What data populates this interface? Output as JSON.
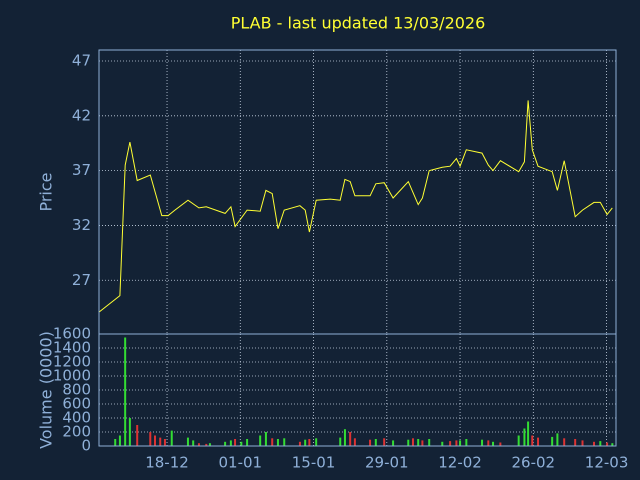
{
  "chart_data": [
    {
      "type": "line",
      "title": "PLAB - last updated 13/03/2026",
      "ylabel": "Price",
      "color": "#ffff33",
      "grid": true,
      "xlim": [
        0,
        98.8
      ],
      "ylim": [
        22.1,
        48
      ],
      "yticks": [
        27,
        32,
        37,
        42,
        47
      ],
      "xticks": [
        13,
        27,
        41,
        55,
        69,
        83,
        97
      ],
      "x": [
        0,
        4.0,
        5.0,
        5.9,
        7.3,
        9.8,
        12.0,
        13.2,
        14.5,
        17.0,
        19.1,
        20.5,
        24.1,
        25.2,
        26.0,
        28.3,
        30.8,
        31.9,
        33.1,
        34.2,
        35.4,
        38.4,
        39.4,
        40.2,
        41.5,
        44.2,
        46.1,
        47.0,
        48.0,
        48.9,
        51.8,
        52.9,
        54.5,
        56.2,
        59.1,
        61.0,
        61.8,
        63.1,
        65.6,
        67.1,
        68.3,
        69.0,
        70.2,
        73.2,
        74.4,
        75.3,
        76.7,
        80.2,
        81.3,
        82.0,
        82.8,
        83.9,
        86.6,
        87.6,
        88.9,
        91.0,
        92.4,
        94.6,
        95.8,
        97.1,
        98.1
      ],
      "values": [
        24.1,
        25.6,
        37.5,
        39.6,
        36.1,
        36.6,
        32.9,
        32.9,
        33.4,
        34.3,
        33.6,
        33.7,
        33.1,
        33.7,
        31.9,
        33.4,
        33.3,
        35.2,
        34.9,
        31.7,
        33.4,
        33.8,
        33.4,
        31.4,
        34.3,
        34.4,
        34.3,
        36.2,
        36.0,
        34.7,
        34.7,
        35.8,
        35.9,
        34.5,
        36.0,
        33.9,
        34.5,
        37.0,
        37.3,
        37.4,
        38.1,
        37.4,
        38.9,
        38.6,
        37.5,
        37.0,
        37.9,
        36.9,
        37.8,
        43.4,
        38.9,
        37.4,
        36.9,
        35.2,
        37.9,
        32.8,
        33.4,
        34.1,
        34.1,
        33.0,
        33.6
      ]
    },
    {
      "type": "bar",
      "ylabel": "Volume (0000)",
      "grid": true,
      "xlim": [
        0,
        98.8
      ],
      "ylim": [
        0,
        1600
      ],
      "yticks": [
        0,
        200,
        400,
        600,
        800,
        1000,
        1200,
        1400,
        1600
      ],
      "xticks": [
        {
          "value": 13,
          "label": "18-12"
        },
        {
          "value": 27,
          "label": "01-01"
        },
        {
          "value": 41,
          "label": "15-01"
        },
        {
          "value": 55,
          "label": "29-01"
        },
        {
          "value": 69,
          "label": "12-02"
        },
        {
          "value": 83,
          "label": "26-02"
        },
        {
          "value": 97,
          "label": "12-03"
        }
      ],
      "x": [
        3.1,
        4.0,
        5.0,
        5.9,
        7.3,
        9.8,
        10.7,
        11.7,
        12.6,
        13.9,
        17.0,
        18.0,
        19.1,
        20.5,
        21.2,
        24.1,
        25.2,
        26.0,
        27.2,
        28.3,
        30.8,
        31.9,
        33.1,
        34.2,
        35.4,
        38.4,
        39.4,
        40.2,
        41.5,
        46.1,
        47.0,
        48.0,
        48.9,
        51.8,
        52.9,
        54.5,
        56.2,
        59.1,
        60.0,
        61.0,
        61.8,
        63.1,
        65.6,
        67.1,
        68.3,
        69.0,
        70.2,
        73.2,
        74.4,
        75.3,
        76.7,
        80.2,
        81.3,
        82.0,
        82.8,
        83.9,
        86.6,
        87.6,
        88.9,
        91.0,
        92.4,
        94.6,
        95.8,
        97.1,
        98.1
      ],
      "values": [
        100,
        150,
        1550,
        400,
        300,
        200,
        150,
        120,
        100,
        220,
        120,
        80,
        40,
        30,
        40,
        60,
        80,
        100,
        60,
        100,
        150,
        200,
        110,
        100,
        110,
        60,
        90,
        100,
        110,
        120,
        240,
        200,
        110,
        90,
        100,
        110,
        80,
        90,
        110,
        100,
        80,
        100,
        60,
        70,
        80,
        80,
        100,
        90,
        80,
        60,
        50,
        150,
        250,
        350,
        150,
        120,
        130,
        180,
        110,
        100,
        80,
        60,
        70,
        50,
        40
      ],
      "colors": [
        "#33dd33",
        "#33dd33",
        "#33dd33",
        "#33dd33",
        "#dd3333",
        "#dd3333",
        "#dd3333",
        "#dd3333",
        "#dd3333",
        "#33dd33",
        "#33dd33",
        "#33dd33",
        "#dd3333",
        "#dd3333",
        "#33dd33",
        "#33dd33",
        "#33dd33",
        "#dd3333",
        "#33dd33",
        "#33dd33",
        "#33dd33",
        "#33dd33",
        "#dd3333",
        "#33dd33",
        "#33dd33",
        "#dd3333",
        "#33dd33",
        "#dd3333",
        "#33dd33",
        "#33dd33",
        "#33dd33",
        "#dd3333",
        "#dd3333",
        "#dd3333",
        "#33dd33",
        "#dd3333",
        "#33dd33",
        "#33dd33",
        "#dd3333",
        "#33dd33",
        "#dd3333",
        "#33dd33",
        "#33dd33",
        "#dd3333",
        "#dd3333",
        "#33dd33",
        "#33dd33",
        "#33dd33",
        "#dd3333",
        "#33dd33",
        "#dd3333",
        "#33dd33",
        "#33dd33",
        "#33dd33",
        "#dd3333",
        "#dd3333",
        "#33dd33",
        "#33dd33",
        "#dd3333",
        "#dd3333",
        "#dd3333",
        "#dd3333",
        "#33dd33",
        "#dd3333",
        "#33dd33"
      ]
    }
  ]
}
